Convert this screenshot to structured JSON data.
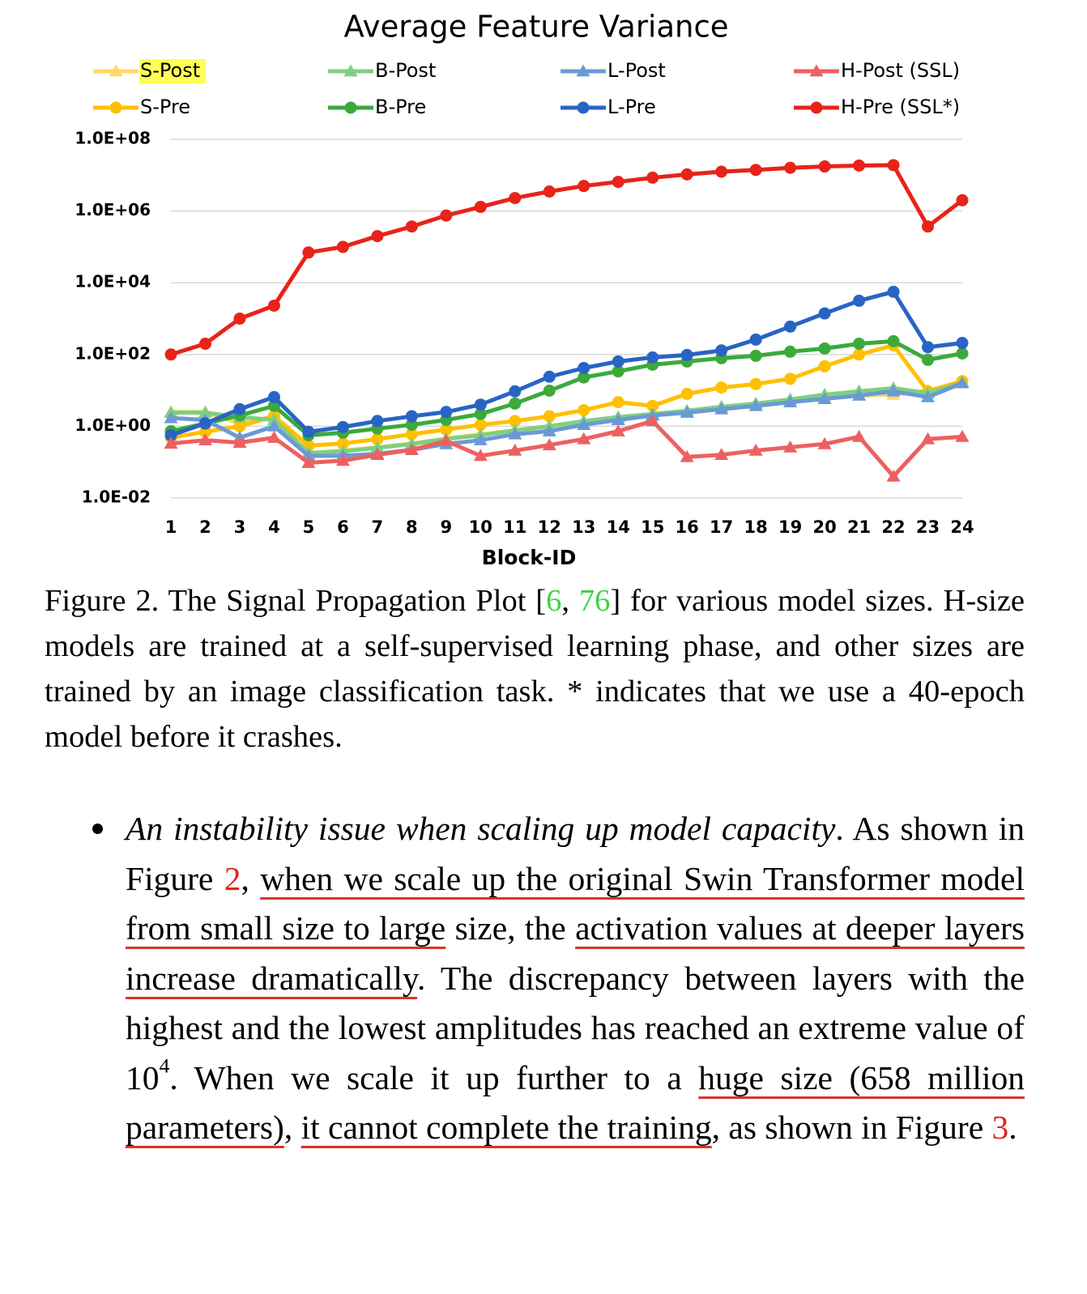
{
  "chart_data": {
    "type": "line",
    "title": "Average Feature Variance",
    "x_label": "Block-ID",
    "categories": [
      "1",
      "2",
      "3",
      "4",
      "5",
      "6",
      "7",
      "8",
      "9",
      "10",
      "11",
      "12",
      "13",
      "14",
      "15",
      "16",
      "17",
      "18",
      "19",
      "20",
      "21",
      "22",
      "23",
      "24"
    ],
    "log_scale": true,
    "grid": true,
    "legend": "top",
    "ylim": [
      0.01,
      100000000
    ],
    "yticks": [
      {
        "value": 0.01,
        "label": "1.0E-02"
      },
      {
        "value": 1,
        "label": "1.0E+00"
      },
      {
        "value": 100,
        "label": "1.0E+02"
      },
      {
        "value": 10000,
        "label": "1.0E+04"
      },
      {
        "value": 1000000,
        "label": "1.0E+06"
      },
      {
        "value": 100000000,
        "label": "1.0E+08"
      }
    ],
    "series": [
      {
        "name": "S-Post",
        "color": "#ffd966",
        "marker": "triangle",
        "highlight": "#ffff55",
        "values": [
          2.5,
          2.5,
          1.2,
          1.9,
          0.18,
          0.21,
          0.26,
          0.33,
          0.46,
          0.6,
          0.77,
          0.95,
          1.3,
          1.6,
          2,
          2.4,
          3,
          3.7,
          4.7,
          6.2,
          7.2,
          7.6,
          9.8,
          18
        ]
      },
      {
        "name": "S-Pre",
        "color": "#ffc000",
        "marker": "circle",
        "values": [
          0.48,
          0.7,
          1,
          1.9,
          0.29,
          0.33,
          0.44,
          0.6,
          0.81,
          1.1,
          1.4,
          1.9,
          2.8,
          4.7,
          3.7,
          8,
          12,
          15,
          21,
          47,
          100,
          180,
          9.4,
          18
        ]
      },
      {
        "name": "B-Post",
        "color": "#7fcf7f",
        "marker": "triangle",
        "values": [
          2.4,
          2.4,
          1.8,
          1.5,
          0.18,
          0.2,
          0.25,
          0.32,
          0.44,
          0.56,
          0.77,
          1,
          1.4,
          1.8,
          2.2,
          2.7,
          3.5,
          4.3,
          5.6,
          7.6,
          9.4,
          11.5,
          8.4,
          16
        ]
      },
      {
        "name": "B-Pre",
        "color": "#3aaa3a",
        "marker": "circle",
        "values": [
          0.73,
          1.2,
          2,
          3.7,
          0.56,
          0.66,
          0.86,
          1.1,
          1.5,
          2.2,
          4.3,
          9.8,
          23,
          34,
          52,
          64,
          79,
          92,
          120,
          147,
          200,
          235,
          71,
          107
        ]
      },
      {
        "name": "L-Post",
        "color": "#6a9ad6",
        "marker": "triangle",
        "values": [
          1.7,
          1.5,
          0.48,
          1,
          0.15,
          0.15,
          0.17,
          0.22,
          0.32,
          0.41,
          0.6,
          0.73,
          1.1,
          1.5,
          2,
          2.4,
          3,
          3.7,
          4.7,
          5.8,
          7.2,
          9.4,
          6.5,
          16
        ]
      },
      {
        "name": "L-Pre",
        "color": "#2864c4",
        "marker": "circle",
        "values": [
          0.56,
          1.2,
          3,
          6.5,
          0.7,
          0.95,
          1.4,
          1.9,
          2.5,
          4,
          9.4,
          24,
          42,
          64,
          83,
          97,
          130,
          260,
          600,
          1400,
          3150,
          5600,
          160,
          210
        ]
      },
      {
        "name": "H-Post (SSL)",
        "color": "#ee6060",
        "marker": "triangle",
        "values": [
          0.33,
          0.41,
          0.35,
          0.48,
          0.096,
          0.11,
          0.16,
          0.22,
          0.39,
          0.15,
          0.21,
          0.3,
          0.44,
          0.73,
          1.4,
          0.14,
          0.16,
          0.21,
          0.26,
          0.32,
          0.51,
          0.04,
          0.44,
          0.51
        ]
      },
      {
        "name": "H-Pre (SSL*)",
        "color": "#e8231a",
        "marker": "circle",
        "values": [
          100,
          200,
          1000,
          2300,
          70000,
          100000,
          200000,
          370000,
          750000,
          1300000,
          2300000,
          3500000,
          5000000,
          6500000,
          8500000,
          10500000,
          12500000,
          14000000,
          16000000,
          17500000,
          18500000,
          19000000,
          370000,
          2000000
        ]
      }
    ]
  },
  "caption": [
    "Figure 2.  The Signal Propagation Plot [",
    "6",
    ", ",
    "76",
    "] for various model sizes.  H-size models are trained at a self-supervised learning phase, and other sizes are trained by an image classification task. * indicates that we use a 40-epoch model before it crashes."
  ],
  "paragraph": [
    "An instability issue when scaling up model capacity",
    ". As shown in Figure ",
    "2",
    ", ",
    "when we scale up the original Swin Transformer model from small size to large",
    " size, the ",
    "activation values at deeper layers increase dramatically",
    ". The discrepancy between layers with the highest and the lowest amplitudes has reached an extreme value of ",
    "10",
    "4",
    ".  When we scale it up further to a ",
    "huge size (658 million parameters)",
    ", ",
    "it cannot complete the training",
    ", as shown in Figure ",
    "3",
    "."
  ]
}
